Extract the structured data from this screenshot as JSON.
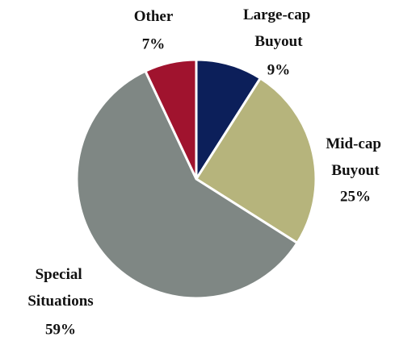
{
  "chart_data": {
    "type": "pie",
    "categories": [
      "Large-cap Buyout",
      "Mid-cap Buyout",
      "Special Situations",
      "Other"
    ],
    "values": [
      9,
      25,
      59,
      7
    ],
    "value_labels": [
      "9%",
      "25%",
      "59%",
      "7%"
    ],
    "colors": [
      "#0c1f5a",
      "#b6b47c",
      "#7f8784",
      "#a0132e"
    ]
  }
}
